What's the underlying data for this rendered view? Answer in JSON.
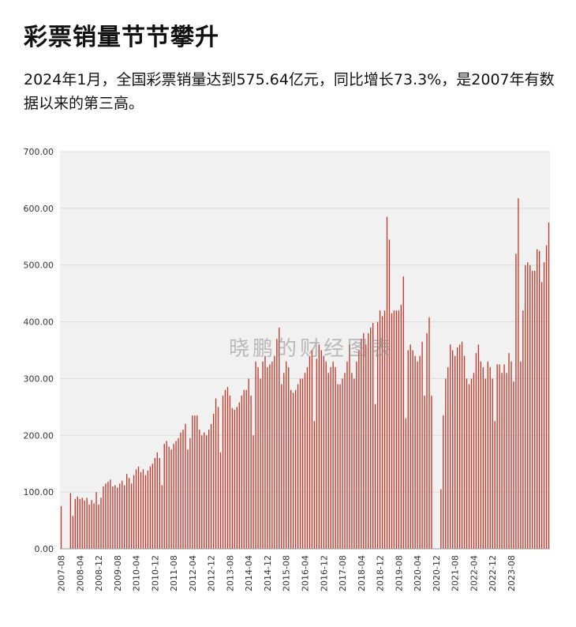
{
  "header": {
    "title": "彩票销量节节攀升",
    "subtitle": "2024年1月，全国彩票销量达到575.64亿元，同比增长73.3%，是2007年有数据以来的第三高。"
  },
  "watermark": "晓鹏的财经图表",
  "colors": {
    "bar": "#c0392b",
    "plot_bg": "#f1f1f1",
    "grid": "#dddddd"
  },
  "chart_data": {
    "type": "bar",
    "title": "",
    "xlabel": "",
    "ylabel": "",
    "ylim": [
      0,
      700
    ],
    "yticks": [
      "0.00",
      "100.00",
      "200.00",
      "300.00",
      "400.00",
      "500.00",
      "600.00",
      "700.00"
    ],
    "grid": true,
    "start": "2007-08",
    "xtick_labels": [
      "2007-08",
      "2008-04",
      "2008-12",
      "2009-08",
      "2010-04",
      "2010-12",
      "2011-08",
      "2012-04",
      "2012-12",
      "2013-08",
      "2014-04",
      "2014-12",
      "2015-08",
      "2016-04",
      "2016-12",
      "2017-08",
      "2018-04",
      "2018-12",
      "2019-08",
      "2020-04",
      "2020-12",
      "2021-08",
      "2022-04",
      "2022-12",
      "2023-08"
    ],
    "values": [
      75,
      0,
      0,
      0,
      98,
      58,
      88,
      92,
      88,
      90,
      85,
      90,
      78,
      86,
      80,
      100,
      78,
      90,
      110,
      115,
      118,
      122,
      110,
      112,
      108,
      115,
      120,
      112,
      132,
      125,
      115,
      130,
      140,
      145,
      135,
      140,
      130,
      138,
      145,
      150,
      160,
      170,
      160,
      112,
      185,
      190,
      180,
      175,
      185,
      190,
      195,
      205,
      210,
      220,
      175,
      195,
      235,
      235,
      235,
      210,
      200,
      205,
      200,
      210,
      220,
      238,
      265,
      250,
      170,
      270,
      280,
      285,
      270,
      248,
      245,
      250,
      258,
      270,
      280,
      280,
      300,
      270,
      200,
      330,
      320,
      300,
      330,
      340,
      320,
      325,
      330,
      340,
      370,
      390,
      290,
      310,
      330,
      320,
      280,
      275,
      280,
      290,
      300,
      300,
      310,
      320,
      340,
      350,
      225,
      335,
      360,
      350,
      340,
      330,
      310,
      320,
      330,
      320,
      290,
      290,
      300,
      310,
      330,
      360,
      310,
      300,
      330,
      350,
      370,
      380,
      360,
      380,
      390,
      398,
      255,
      400,
      420,
      410,
      420,
      585,
      545,
      415,
      420,
      420,
      420,
      430,
      480,
      230,
      350,
      360,
      350,
      340,
      330,
      340,
      365,
      270,
      380,
      408,
      270,
      0,
      0,
      0,
      105,
      235,
      300,
      320,
      360,
      350,
      340,
      355,
      360,
      365,
      340,
      300,
      290,
      300,
      310,
      345,
      360,
      330,
      320,
      300,
      330,
      320,
      300,
      225,
      325,
      325,
      310,
      325,
      310,
      345,
      330,
      295,
      520,
      618,
      330,
      420,
      500,
      505,
      500,
      490,
      490,
      528,
      525,
      470,
      505,
      535,
      575
    ]
  }
}
